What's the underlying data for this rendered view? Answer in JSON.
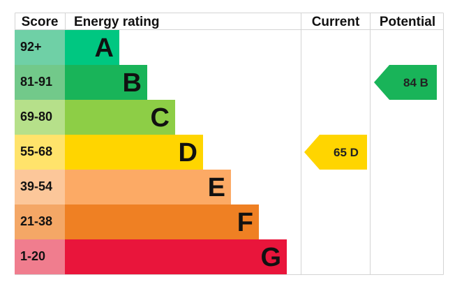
{
  "chart_data": {
    "type": "epc-rating",
    "headers": {
      "score": "Score",
      "rating": "Energy rating",
      "current": "Current",
      "potential": "Potential"
    },
    "bands": [
      {
        "letter": "A",
        "range": "92+",
        "color": "#00c781",
        "score_bg": "#6fd0a6"
      },
      {
        "letter": "B",
        "range": "81-91",
        "color": "#19b459",
        "score_bg": "#72c98a"
      },
      {
        "letter": "C",
        "range": "69-80",
        "color": "#8dce46",
        "score_bg": "#b6e08a"
      },
      {
        "letter": "D",
        "range": "55-68",
        "color": "#ffd500",
        "score_bg": "#ffe36b"
      },
      {
        "letter": "E",
        "range": "39-54",
        "color": "#fcaa65",
        "score_bg": "#fcc79a"
      },
      {
        "letter": "F",
        "range": "21-38",
        "color": "#ef8023",
        "score_bg": "#f4a766"
      },
      {
        "letter": "G",
        "range": "1-20",
        "color": "#e9153b",
        "score_bg": "#f07d8e"
      }
    ],
    "current": {
      "value": 65,
      "band": "D",
      "label": "65 D",
      "color": "#ffd500"
    },
    "potential": {
      "value": 84,
      "band": "B",
      "label": "84 B",
      "color": "#19b459"
    }
  },
  "footer": {
    "text": ""
  }
}
